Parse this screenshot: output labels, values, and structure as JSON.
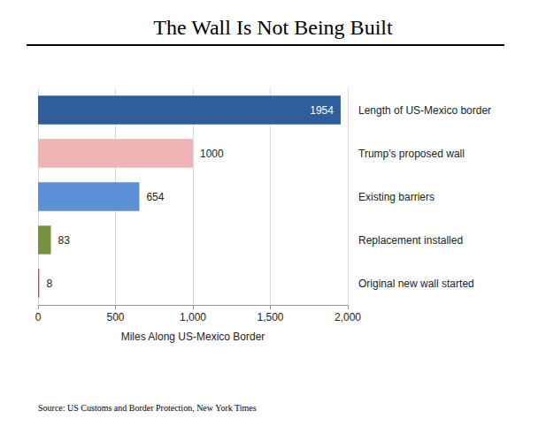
{
  "chart_data": {
    "type": "bar",
    "orientation": "horizontal",
    "title": "The Wall Is Not Being Built",
    "x_label": "Miles Along US-Mexico Border",
    "source": "Source: US Customs and Border Protection, New York Times",
    "categories": [
      "Length of US-Mexico border",
      "Trump's proposed wall",
      "Existing barriers",
      "Replacement installed",
      "Original new wall started"
    ],
    "values": [
      1954,
      1000,
      654,
      83,
      8
    ],
    "colors": [
      "#2e5e9c",
      "#f0b4b4",
      "#5b8fd6",
      "#76923c",
      "#c0504d"
    ],
    "xlim": [
      0,
      2000
    ],
    "xticks": [
      0,
      500,
      1000,
      1500,
      2000
    ],
    "data_labels": true,
    "grid": true
  }
}
